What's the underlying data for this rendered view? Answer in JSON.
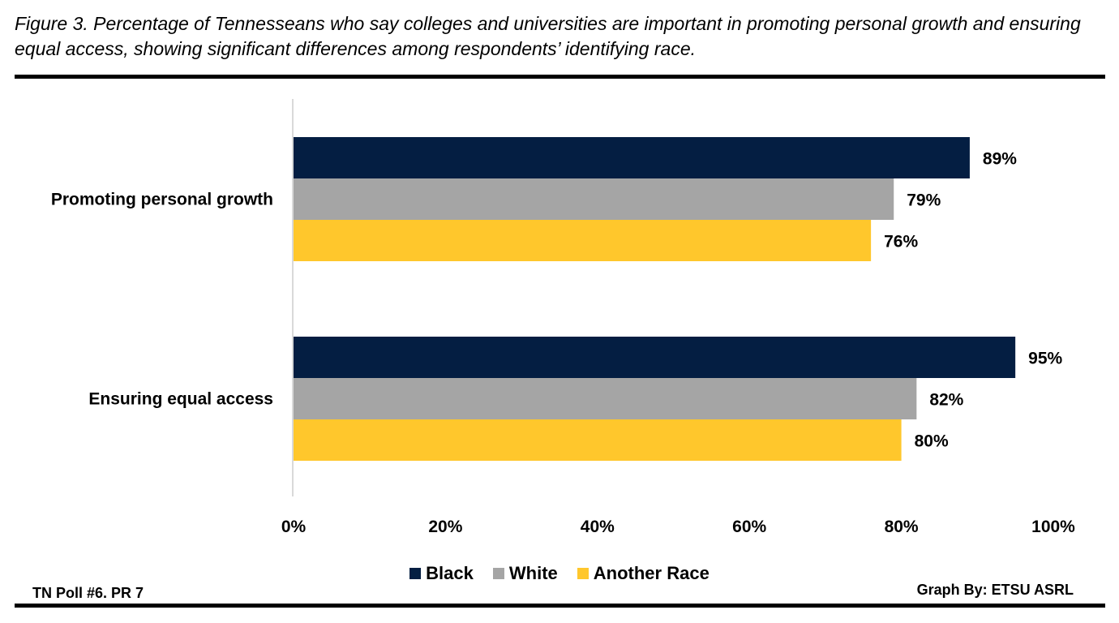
{
  "title": "Figure 3. Percentage of Tennesseans who say colleges and universities are important in promoting personal growth and ensuring equal access, showing significant differences among respondents’ identifying race.",
  "chart_data": {
    "type": "bar",
    "orientation": "horizontal",
    "categories": [
      "Promoting personal growth",
      "Ensuring equal access"
    ],
    "series": [
      {
        "name": "Black",
        "color": "#041E42",
        "values": [
          89,
          95
        ]
      },
      {
        "name": "White",
        "color": "#A5A5A5",
        "values": [
          79,
          82
        ]
      },
      {
        "name": "Another Race",
        "color": "#FFC72C",
        "values": [
          76,
          80
        ]
      }
    ],
    "data_labels": [
      [
        "89%",
        "95%"
      ],
      [
        "79%",
        "82%"
      ],
      [
        "76%",
        "80%"
      ]
    ],
    "xlim": [
      0,
      100
    ],
    "xticks": [
      "0%",
      "20%",
      "40%",
      "60%",
      "80%",
      "100%"
    ],
    "grid": false,
    "legend": "bottom"
  },
  "footer": {
    "left": "TN Poll #6. PR 7",
    "right": "Graph By: ETSU ASRL"
  }
}
